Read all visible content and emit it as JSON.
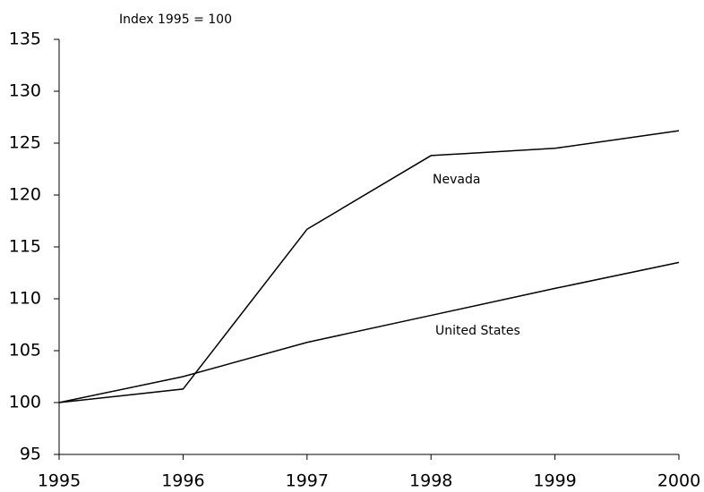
{
  "chart_data": {
    "type": "line",
    "subtitle": "Index 1995 = 100",
    "x": [
      1995,
      1996,
      1997,
      1998,
      1999,
      2000
    ],
    "series": [
      {
        "name": "Nevada",
        "color": "#000000",
        "values": [
          100,
          101.3,
          116.7,
          123.8,
          124.5,
          126.2
        ]
      },
      {
        "name": "United States",
        "color": "#000000",
        "values": [
          100,
          102.5,
          105.8,
          108.4,
          111.0,
          113.5
        ]
      }
    ],
    "xlim": [
      1995,
      2000
    ],
    "xticks": [
      1995,
      1996,
      1997,
      1998,
      1999,
      2000
    ],
    "ylim": [
      95,
      135
    ],
    "yticks": [
      95,
      100,
      105,
      110,
      115,
      120,
      125,
      130,
      135
    ],
    "grid": false
  }
}
